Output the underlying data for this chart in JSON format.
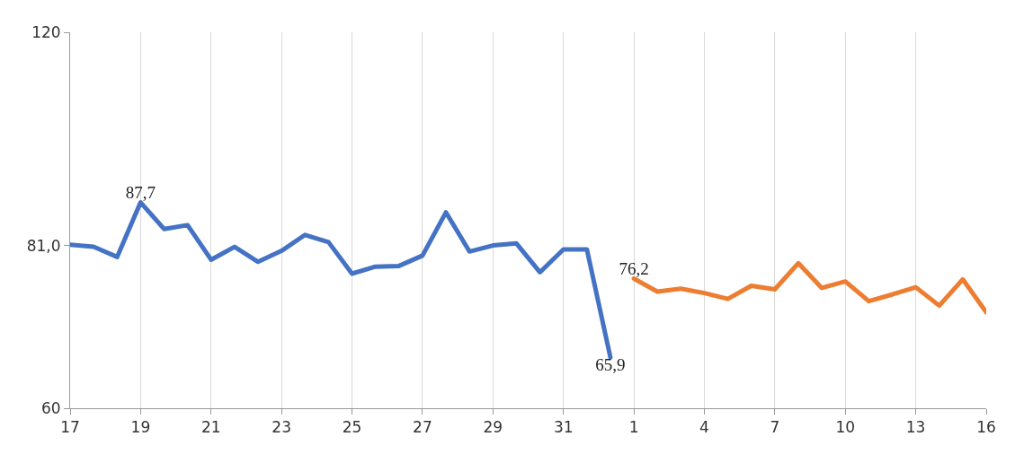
{
  "chart_data": {
    "type": "line",
    "categories": [
      "17",
      null,
      null,
      "19",
      null,
      null,
      "21",
      null,
      null,
      "23",
      null,
      null,
      "25",
      null,
      null,
      "27",
      null,
      null,
      "29",
      null,
      null,
      "31",
      null,
      null,
      "1",
      null,
      null,
      "4",
      null,
      null,
      "7",
      null,
      null,
      "10",
      null,
      null,
      "13",
      null,
      null,
      "16"
    ],
    "series": [
      {
        "color": "#4472c4",
        "values": [
          81.1,
          80.8,
          79.3,
          87.7,
          83.5,
          84.1,
          78.9,
          80.8,
          78.6,
          80.2,
          82.6,
          81.5,
          76.9,
          77.9,
          78.0,
          79.5,
          86.1,
          80.1,
          81.0,
          81.3,
          77.1,
          80.4,
          80.4,
          65.9,
          null,
          null,
          null,
          null,
          null,
          null,
          null,
          null,
          null,
          null,
          null,
          null,
          null,
          null,
          null,
          null
        ],
        "value_labels": [
          null,
          null,
          null,
          "87,7",
          null,
          null,
          null,
          null,
          null,
          null,
          null,
          null,
          null,
          null,
          null,
          null,
          null,
          null,
          null,
          null,
          null,
          null,
          null,
          "65,9",
          null,
          null,
          null,
          null,
          null,
          null,
          null,
          null,
          null,
          null,
          null,
          null,
          null,
          null,
          null,
          null
        ]
      },
      {
        "color": "#ed7d31",
        "values": [
          null,
          null,
          null,
          null,
          null,
          null,
          null,
          null,
          null,
          null,
          null,
          null,
          null,
          null,
          null,
          null,
          null,
          null,
          null,
          null,
          null,
          null,
          null,
          null,
          76.2,
          74.4,
          74.8,
          74.2,
          73.4,
          75.2,
          74.7,
          78.4,
          74.9,
          75.8,
          73.1,
          74.0,
          75.0,
          72.5,
          76.1,
          71.6
        ],
        "value_labels": [
          null,
          null,
          null,
          null,
          null,
          null,
          null,
          null,
          null,
          null,
          null,
          null,
          null,
          null,
          null,
          null,
          null,
          null,
          null,
          null,
          null,
          null,
          null,
          null,
          "76,2",
          null,
          null,
          null,
          null,
          null,
          null,
          null,
          null,
          null,
          null,
          null,
          null,
          null,
          null,
          null
        ]
      }
    ],
    "ylim": [
      60,
      120
    ],
    "yticks": [
      60,
      {
        "value": 81,
        "label": "81,0"
      },
      120
    ],
    "log": true,
    "grid": "x",
    "marker": "none",
    "line_style": "solid"
  }
}
